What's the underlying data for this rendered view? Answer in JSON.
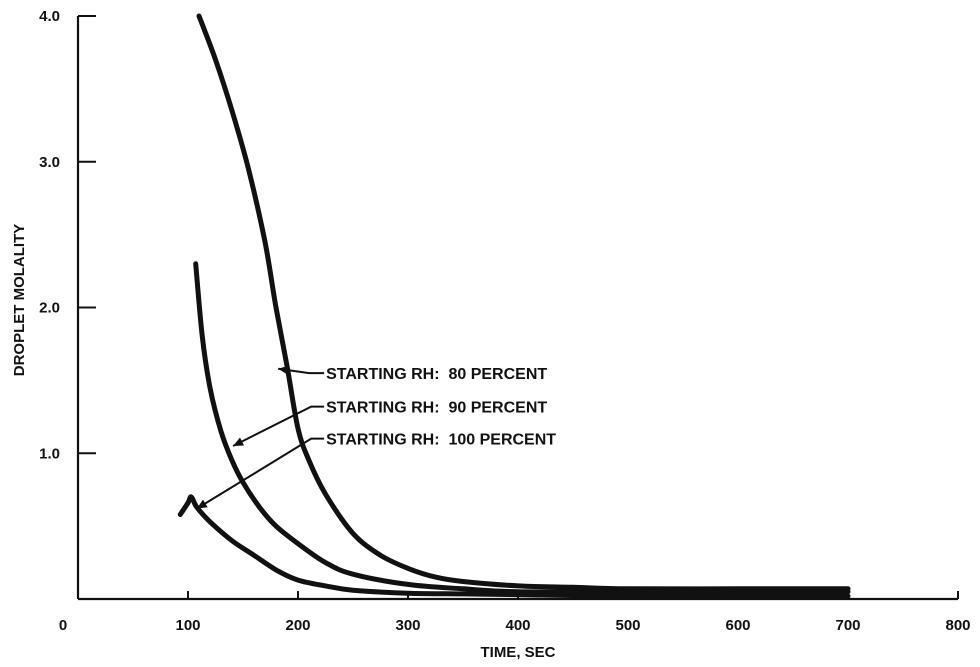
{
  "chart_data": {
    "type": "line",
    "title": "",
    "xlabel": "TIME, SEC",
    "ylabel": "DROPLET MOLALITY",
    "xlim": [
      0,
      800
    ],
    "ylim": [
      0,
      4.0
    ],
    "grid": false,
    "x_ticks": [
      {
        "value": 0,
        "label": "0"
      },
      {
        "value": 100,
        "label": "100"
      },
      {
        "value": 200,
        "label": "200"
      },
      {
        "value": 300,
        "label": "300"
      },
      {
        "value": 400,
        "label": "400"
      },
      {
        "value": 500,
        "label": "500"
      },
      {
        "value": 600,
        "label": "600"
      },
      {
        "value": 700,
        "label": "700"
      },
      {
        "value": 800,
        "label": "800"
      }
    ],
    "y_ticks": [
      {
        "value": 1.0,
        "label": "1.0"
      },
      {
        "value": 2.0,
        "label": "2.0"
      },
      {
        "value": 3.0,
        "label": "3.0"
      },
      {
        "value": 4.0,
        "label": "4.0"
      }
    ],
    "series": [
      {
        "name": "STARTING RH: 80 PERCENT",
        "points": [
          [
            110,
            4.0
          ],
          [
            125,
            3.7
          ],
          [
            140,
            3.35
          ],
          [
            155,
            2.95
          ],
          [
            170,
            2.45
          ],
          [
            180,
            2.0
          ],
          [
            190,
            1.6
          ],
          [
            200,
            1.17
          ],
          [
            210,
            0.95
          ],
          [
            225,
            0.72
          ],
          [
            250,
            0.45
          ],
          [
            275,
            0.3
          ],
          [
            300,
            0.21
          ],
          [
            325,
            0.15
          ],
          [
            350,
            0.12
          ],
          [
            400,
            0.09
          ],
          [
            450,
            0.08
          ],
          [
            500,
            0.07
          ],
          [
            600,
            0.07
          ],
          [
            700,
            0.07
          ]
        ]
      },
      {
        "name": "STARTING RH: 90 PERCENT",
        "points": [
          [
            107,
            2.3
          ],
          [
            113,
            1.8
          ],
          [
            120,
            1.45
          ],
          [
            130,
            1.15
          ],
          [
            140,
            0.95
          ],
          [
            150,
            0.8
          ],
          [
            165,
            0.63
          ],
          [
            180,
            0.5
          ],
          [
            200,
            0.38
          ],
          [
            225,
            0.25
          ],
          [
            250,
            0.17
          ],
          [
            300,
            0.1
          ],
          [
            350,
            0.07
          ],
          [
            400,
            0.05
          ],
          [
            500,
            0.05
          ],
          [
            700,
            0.05
          ]
        ]
      },
      {
        "name": "STARTING RH: 100 PERCENT",
        "points": [
          [
            93,
            0.58
          ],
          [
            100,
            0.66
          ],
          [
            103,
            0.7
          ],
          [
            108,
            0.63
          ],
          [
            120,
            0.53
          ],
          [
            140,
            0.4
          ],
          [
            160,
            0.3
          ],
          [
            180,
            0.2
          ],
          [
            200,
            0.13
          ],
          [
            225,
            0.09
          ],
          [
            250,
            0.06
          ],
          [
            300,
            0.04
          ],
          [
            350,
            0.035
          ],
          [
            400,
            0.03
          ],
          [
            500,
            0.02
          ],
          [
            700,
            0.02
          ]
        ]
      }
    ],
    "annotations": [
      {
        "text": "STARTING RH:  80 PERCENT",
        "series": 0,
        "point": [
          182,
          1.58
        ],
        "elbow": [
          210,
          1.55
        ],
        "label_pos": [
          221,
          1.55
        ]
      },
      {
        "text": "STARTING RH:  90 PERCENT",
        "series": 1,
        "point": [
          141,
          1.05
        ],
        "elbow": [
          212,
          1.32
        ],
        "label_pos": [
          221,
          1.32
        ]
      },
      {
        "text": "STARTING RH:  100 PERCENT",
        "series": 2,
        "point": [
          108,
          0.62
        ],
        "elbow": [
          212,
          1.1
        ],
        "label_pos": [
          221,
          1.1
        ]
      }
    ],
    "line_color": "#111111"
  }
}
